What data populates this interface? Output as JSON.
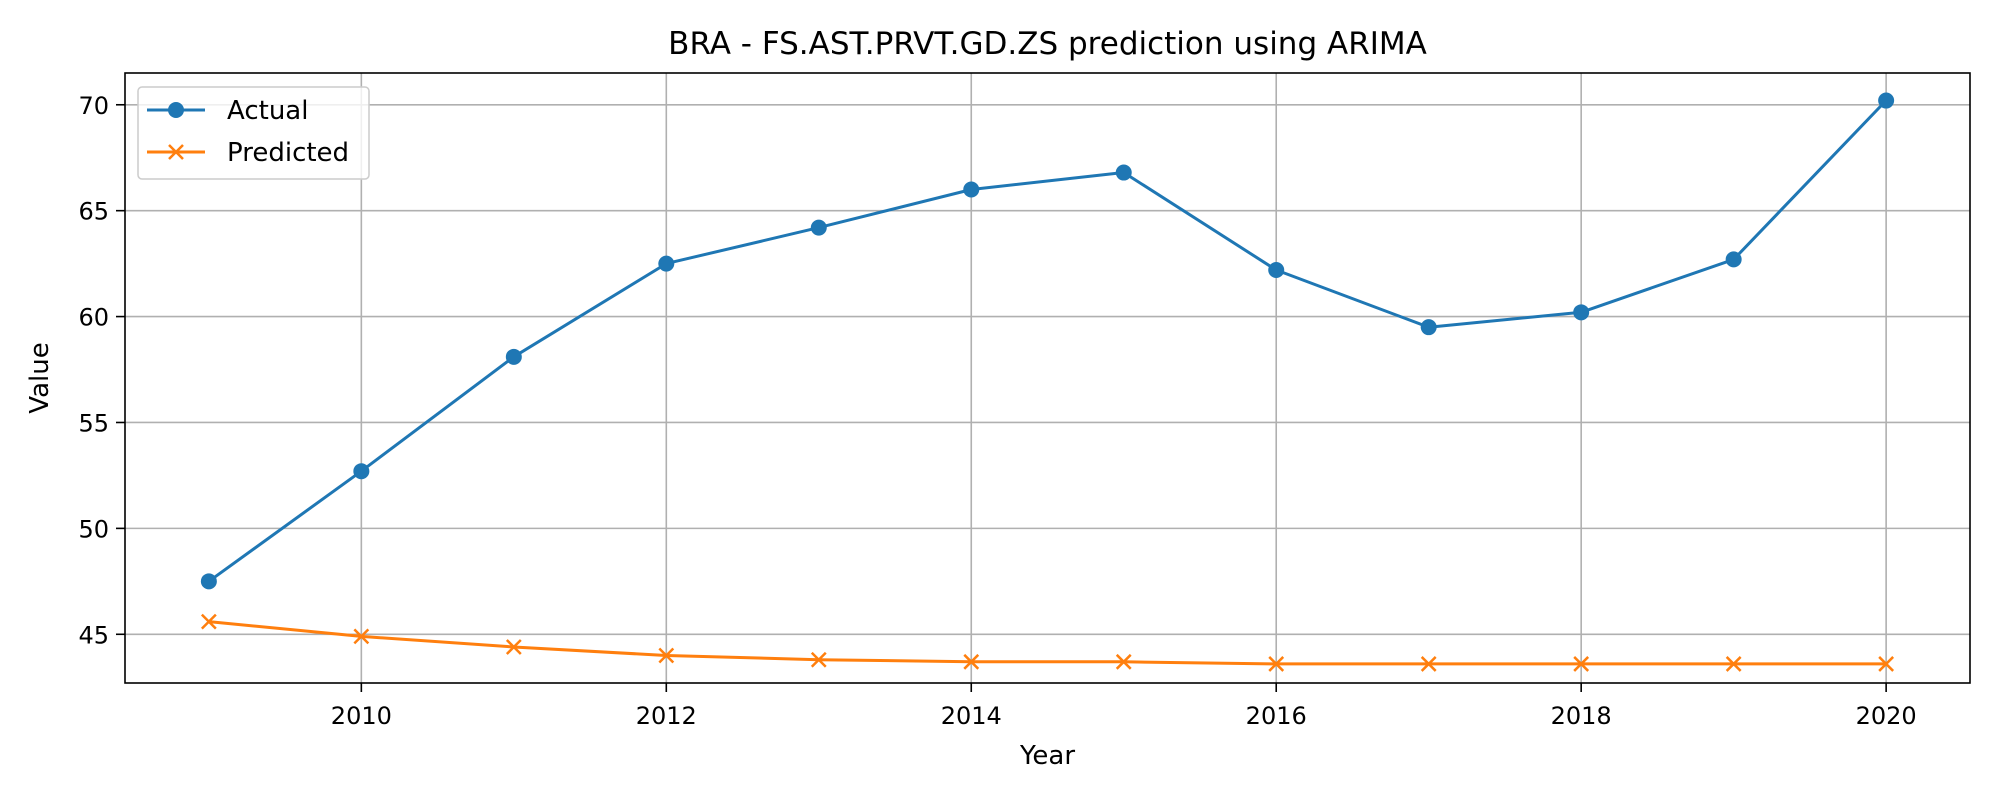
{
  "chart_data": {
    "type": "line",
    "title": "BRA - FS.AST.PRVT.GD.ZS prediction using ARIMA",
    "xlabel": "Year",
    "ylabel": "Value",
    "x": [
      2009,
      2010,
      2011,
      2012,
      2013,
      2014,
      2015,
      2016,
      2017,
      2018,
      2019,
      2020
    ],
    "xlim": [
      2008.45,
      2020.55
    ],
    "ylim": [
      42.7,
      71.5
    ],
    "x_ticks": [
      2010,
      2012,
      2014,
      2016,
      2018,
      2020
    ],
    "y_ticks": [
      45,
      50,
      55,
      60,
      65,
      70
    ],
    "grid": true,
    "legend_position": "top-left",
    "series": [
      {
        "name": "Actual",
        "color": "#1f77b4",
        "marker": "circle",
        "values": [
          47.5,
          52.7,
          58.1,
          62.5,
          64.2,
          66.0,
          66.8,
          62.2,
          59.5,
          60.2,
          62.7,
          70.2
        ]
      },
      {
        "name": "Predicted",
        "color": "#ff7f0e",
        "marker": "x",
        "values": [
          45.6,
          44.9,
          44.4,
          44.0,
          43.8,
          43.7,
          43.7,
          43.6,
          43.6,
          43.6,
          43.6,
          43.6
        ]
      }
    ]
  }
}
